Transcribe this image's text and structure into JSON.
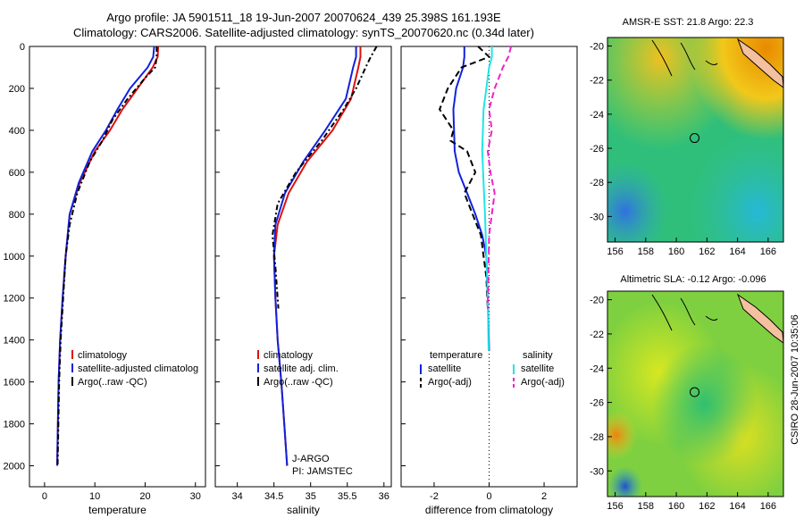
{
  "header": {
    "line1": "Argo profile: JA 5901511_18 19-Jun-2007 20070624_439 25.398S 161.193E",
    "line2": "Climatology: CARS2006. Satellite-adjusted climatology: synTS_20070620.nc (0.34d later)"
  },
  "credit": "CSIRO 28-Jun-2007 10:35:06",
  "colors": {
    "climatology": "#dd1111",
    "satellite": "#1122dd",
    "argo": "#000000",
    "sal_satellite": "#22e5e5",
    "sal_argo": "#ee22cc"
  },
  "chart_data": [
    {
      "type": "line",
      "name": "temperature-profile",
      "xlabel": "temperature",
      "ylabel": "",
      "xlim": [
        -3,
        32
      ],
      "ylim": [
        0,
        2100
      ],
      "y_reversed": true,
      "xticks": [
        0,
        10,
        20,
        30
      ],
      "yticks": [
        0,
        200,
        400,
        600,
        800,
        1000,
        1200,
        1400,
        1600,
        1800,
        2000
      ],
      "legend": [
        "climatology",
        "satellite-adjusted climatolog",
        "Argo(..raw -QC)"
      ],
      "series": [
        {
          "name": "climatology",
          "x": [
            22.6,
            22.5,
            21.5,
            18.5,
            15.5,
            13.0,
            10.0,
            7.0,
            5.0,
            4.2,
            3.6,
            3.1,
            2.8,
            2.5
          ],
          "y": [
            0,
            50,
            100,
            200,
            300,
            400,
            500,
            650,
            800,
            1000,
            1200,
            1400,
            1600,
            2000
          ]
        },
        {
          "name": "satellite-adjusted climatology",
          "x": [
            21.8,
            21.6,
            20.5,
            17.0,
            14.5,
            12.2,
            9.5,
            6.8,
            5.0,
            4.2,
            3.6,
            3.1,
            2.8,
            2.5
          ],
          "y": [
            0,
            50,
            100,
            200,
            300,
            400,
            500,
            650,
            800,
            1000,
            1200,
            1400,
            1600,
            2000
          ]
        },
        {
          "name": "Argo(..raw -QC)",
          "x": [
            22.3,
            22.3,
            22.0,
            20.0,
            16.5,
            13.5,
            11.5,
            9.0,
            6.5,
            5.0,
            4.2,
            3.7,
            3.2,
            2.9,
            2.6
          ],
          "y": [
            0,
            50,
            100,
            150,
            250,
            350,
            450,
            550,
            700,
            850,
            1000,
            1200,
            1400,
            1600,
            2000
          ]
        }
      ]
    },
    {
      "type": "line",
      "name": "salinity-profile",
      "xlabel": "salinity",
      "ylabel": "",
      "xlim": [
        33.7,
        36.1
      ],
      "ylim": [
        0,
        2100
      ],
      "y_reversed": true,
      "xticks": [
        34,
        34.5,
        35,
        35.5,
        36
      ],
      "legend": [
        "climatology",
        "satellite adj. clim.",
        "Argo(..raw -QC)"
      ],
      "annotations": [
        "J-ARGO",
        "PI: JAMSTEC"
      ],
      "series": [
        {
          "name": "climatology",
          "x": [
            35.68,
            35.68,
            35.65,
            35.55,
            35.3,
            34.95,
            34.7,
            34.55,
            34.5,
            34.52,
            34.55,
            34.6,
            34.64,
            34.68
          ],
          "y": [
            0,
            50,
            100,
            250,
            400,
            550,
            700,
            850,
            1000,
            1200,
            1400,
            1600,
            1800,
            2000
          ]
        },
        {
          "name": "satellite adj. clim.",
          "x": [
            35.62,
            35.62,
            35.58,
            35.48,
            35.2,
            34.9,
            34.65,
            34.52,
            34.5,
            34.52,
            34.55,
            34.6,
            34.64,
            34.68
          ],
          "y": [
            0,
            50,
            100,
            250,
            400,
            550,
            700,
            850,
            1000,
            1200,
            1400,
            1600,
            1800,
            2000
          ]
        },
        {
          "name": "Argo(..raw -QC)",
          "x": [
            35.9,
            35.82,
            35.75,
            35.62,
            35.45,
            35.15,
            34.8,
            34.55,
            34.48,
            34.52,
            34.56
          ],
          "y": [
            0,
            50,
            100,
            200,
            300,
            450,
            600,
            750,
            900,
            1050,
            1250
          ]
        }
      ]
    },
    {
      "type": "line",
      "name": "difference-profile",
      "xlabel": "difference from climatology",
      "ylabel": "",
      "xlim": [
        -3.2,
        3.2
      ],
      "ylim": [
        0,
        2100
      ],
      "y_reversed": true,
      "xticks": [
        -2,
        0,
        2
      ],
      "reference_line_x": 0,
      "legend_groups": [
        {
          "heading": "temperature",
          "entries": [
            "satellite",
            "Argo(-adj)"
          ]
        },
        {
          "heading": "salinity",
          "entries": [
            "satellite",
            "Argo(-adj)"
          ]
        }
      ],
      "series": [
        {
          "name": "temperature satellite",
          "x": [
            -0.9,
            -0.9,
            -0.95,
            -1.2,
            -1.3,
            -1.25,
            -1.1,
            -0.8,
            -0.5,
            -0.25,
            -0.1,
            -0.05,
            0.0
          ],
          "y": [
            0,
            50,
            100,
            200,
            300,
            500,
            600,
            700,
            800,
            900,
            1000,
            1200,
            1450
          ]
        },
        {
          "name": "temperature Argo(-adj)",
          "x": [
            -0.4,
            0.0,
            -1.0,
            -1.5,
            -1.8,
            -1.3,
            -1.4,
            -0.8,
            -0.5,
            -0.9,
            -0.6,
            -0.3,
            -0.2,
            -0.1,
            -0.05
          ],
          "y": [
            0,
            50,
            100,
            200,
            300,
            400,
            450,
            500,
            600,
            700,
            800,
            900,
            1000,
            1100,
            1250
          ]
        },
        {
          "name": "salinity satellite",
          "x": [
            0.1,
            0.1,
            0.0,
            -0.1,
            -0.2,
            -0.25,
            -0.2,
            -0.15,
            -0.1,
            -0.05,
            -0.02
          ],
          "y": [
            0,
            50,
            100,
            200,
            300,
            500,
            650,
            800,
            1000,
            1200,
            1450
          ]
        },
        {
          "name": "salinity Argo(-adj)",
          "x": [
            0.8,
            0.7,
            0.5,
            0.2,
            0.0,
            0.1,
            -0.05,
            0.05,
            0.2,
            0.0,
            -0.05
          ],
          "y": [
            0,
            50,
            100,
            200,
            300,
            400,
            500,
            600,
            700,
            900,
            1250
          ]
        }
      ]
    },
    {
      "type": "heatmap",
      "name": "sst-map",
      "title": "AMSR-E SST: 21.8  Argo: 22.3",
      "xlim": [
        155.5,
        167
      ],
      "ylim": [
        -31.5,
        -19.5
      ],
      "xticks": [
        156,
        158,
        160,
        162,
        164,
        166
      ],
      "yticks": [
        -20,
        -22,
        -24,
        -26,
        -28,
        -30
      ],
      "profile_marker": {
        "lon": 161.193,
        "lat": -25.398
      }
    },
    {
      "type": "heatmap",
      "name": "sla-map",
      "title": "Altimetric SLA: -0.12  Argo: -0.096",
      "xlim": [
        155.5,
        167
      ],
      "ylim": [
        -31.5,
        -19.5
      ],
      "xticks": [
        156,
        158,
        160,
        162,
        164,
        166
      ],
      "yticks": [
        -20,
        -22,
        -24,
        -26,
        -28,
        -30
      ],
      "profile_marker": {
        "lon": 161.193,
        "lat": -25.398
      }
    }
  ]
}
